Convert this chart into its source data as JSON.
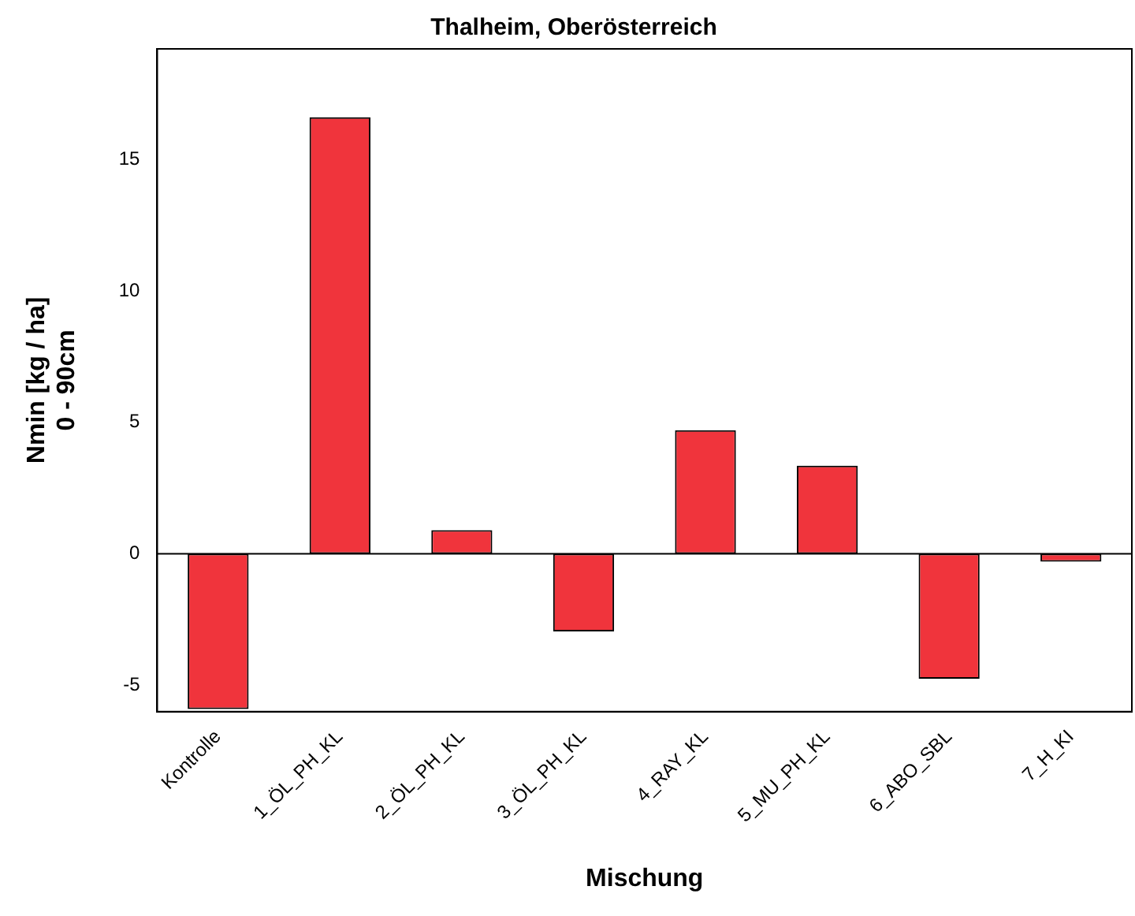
{
  "chart_data": {
    "type": "bar",
    "title": "Thalheim, Oberösterreich",
    "xlabel": "Mischung",
    "ylabel": "Nmin [kg / ha]\n0 - 90cm",
    "categories": [
      "Kontrolle",
      "1_ÖL_PH_KL",
      "2_ÖL_PH_KL",
      "3_ÖL_PH_KL",
      "4_RAY_KL",
      "5_MU_PH_KL",
      "6_ABO_SBL",
      "7_H_KI"
    ],
    "values": [
      -5.9,
      16.6,
      0.9,
      -2.95,
      4.7,
      3.35,
      -4.75,
      -0.3
    ],
    "color": "#f0343c",
    "ylim": [
      -6,
      19.2
    ],
    "yticks": [
      -5,
      0,
      5,
      10,
      15
    ],
    "grid": false,
    "legend": false,
    "ref_lines": [
      {
        "axis": "y",
        "value": 0
      }
    ]
  }
}
